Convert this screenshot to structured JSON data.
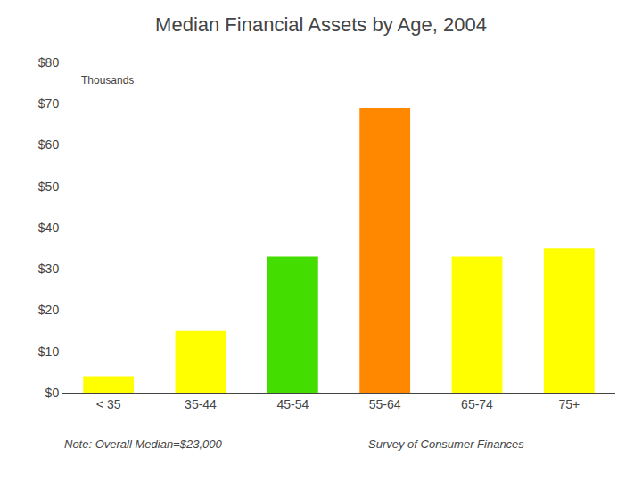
{
  "chart_data": {
    "type": "bar",
    "title": "Median Financial Assets by Age, 2004",
    "subtitle": "Thousands",
    "categories": [
      "< 35",
      "35-44",
      "45-54",
      "55-64",
      "65-74",
      "75+"
    ],
    "values": [
      4,
      15,
      33,
      69,
      33,
      35
    ],
    "colors": [
      "#ffff00",
      "#ffff00",
      "#44dd00",
      "#ff8800",
      "#ffff00",
      "#ffff00"
    ],
    "ylim": [
      0,
      80
    ],
    "yticks": [
      {
        "value": 0,
        "label": "$0"
      },
      {
        "value": 10,
        "label": "$10"
      },
      {
        "value": 20,
        "label": "$20"
      },
      {
        "value": 30,
        "label": "$30"
      },
      {
        "value": 40,
        "label": "$40"
      },
      {
        "value": 50,
        "label": "$50"
      },
      {
        "value": 60,
        "label": "$60"
      },
      {
        "value": 70,
        "label": "$70"
      },
      {
        "value": 80,
        "label": "$80"
      }
    ],
    "grid": false,
    "annotations": [
      "Note: Overall Median=$23,000",
      "Survey of Consumer Finances"
    ]
  }
}
